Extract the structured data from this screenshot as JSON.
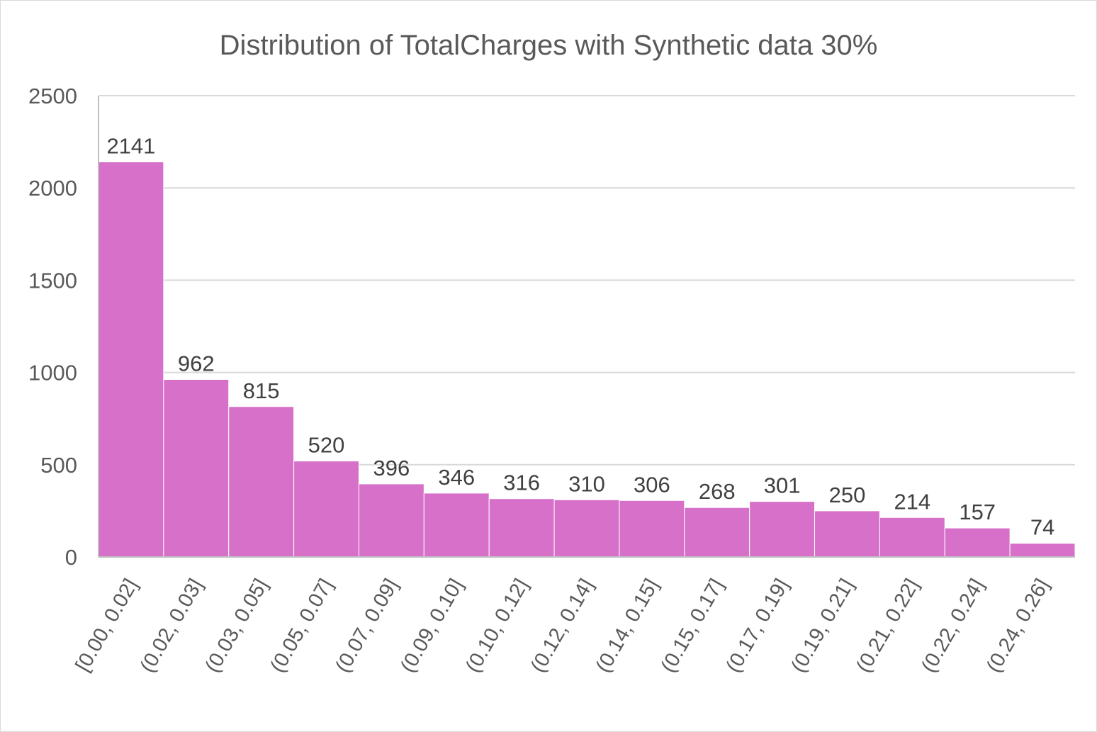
{
  "chart_data": {
    "type": "bar",
    "title": "Distribution of TotalCharges with Synthetic data 30%",
    "xlabel": "",
    "ylabel": "",
    "categories": [
      "[0.00, 0.02]",
      "(0.02, 0.03]",
      "(0.03, 0.05]",
      "(0.05, 0.07]",
      "(0.07, 0.09]",
      "(0.09, 0.10]",
      "(0.10, 0.12]",
      "(0.12, 0.14]",
      "(0.14, 0.15]",
      "(0.15, 0.17]",
      "(0.17, 0.19]",
      "(0.19, 0.21]",
      "(0.21, 0.22]",
      "(0.22, 0.24]",
      "(0.24, 0.26]"
    ],
    "values": [
      2141,
      962,
      815,
      520,
      396,
      346,
      316,
      310,
      306,
      268,
      301,
      250,
      214,
      157,
      74
    ],
    "ylim": [
      0,
      2500
    ],
    "yticks": [
      0,
      500,
      1000,
      1500,
      2000,
      2500
    ],
    "grid": true,
    "legend": "none",
    "bar_color": "#d670c9",
    "data_labels": true
  }
}
